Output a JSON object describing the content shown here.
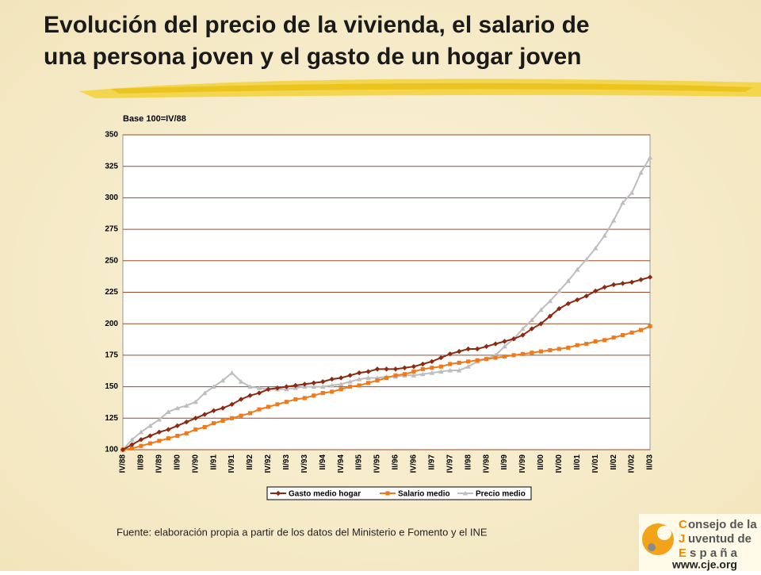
{
  "title_lines": [
    "Evolución del precio de la vivienda, el salario de",
    "una persona joven y el gasto de un hogar joven"
  ],
  "source": "Fuente: elaboración propia a partir de los datos del Ministerio e Fomento y el INE",
  "logo": {
    "lines": [
      "onsejo de la",
      "uventud de",
      "s p a ñ a"
    ],
    "initials": [
      "C",
      "J",
      "E"
    ],
    "url": "www.cje.org"
  },
  "chart_data": {
    "type": "line",
    "ylabel": "Base 100=IV/88",
    "categories": [
      "IV/88",
      null,
      "II/89",
      null,
      "IV/89",
      null,
      "II/90",
      null,
      "IV/90",
      null,
      "II/91",
      null,
      "IV/91",
      null,
      "II/92",
      null,
      "IV/92",
      null,
      "II/93",
      null,
      "IV/93",
      null,
      "II/94",
      null,
      "IV/94",
      null,
      "II/95",
      null,
      "IV/95",
      null,
      "II/96",
      null,
      "IV/96",
      null,
      "II/97",
      null,
      "IV/97",
      null,
      "II/98",
      null,
      "IV/98",
      null,
      "II/99",
      null,
      "IV/99",
      null,
      "II/00",
      null,
      "IV/00",
      null,
      "II/01",
      null,
      "IV/01",
      null,
      "II/02",
      null,
      "IV/02",
      null,
      "II/03"
    ],
    "ylim": [
      100,
      350
    ],
    "yticks": [
      100,
      125,
      150,
      175,
      200,
      225,
      250,
      275,
      300,
      325,
      350
    ],
    "grid": true,
    "legend": "bottom",
    "series": [
      {
        "name": "Gasto medio hogar",
        "color": "#8b2a10",
        "marker": "diamond",
        "values": [
          100,
          104,
          108,
          111,
          114,
          116,
          119,
          122,
          125,
          128,
          131,
          133,
          136,
          140,
          143,
          145,
          148,
          149,
          150,
          151,
          152,
          153,
          154,
          156,
          157,
          159,
          161,
          162,
          164,
          164,
          164,
          165,
          166,
          168,
          170,
          173,
          176,
          178,
          180,
          180,
          182,
          184,
          186,
          188,
          191,
          196,
          200,
          206,
          212,
          216,
          219,
          222,
          226,
          229,
          231,
          232,
          233,
          235,
          237
        ]
      },
      {
        "name": "Salario medio",
        "color": "#f07a1a",
        "marker": "square",
        "values": [
          100,
          101,
          103,
          105,
          107,
          109,
          111,
          113,
          116,
          118,
          121,
          123,
          125,
          127,
          129,
          132,
          134,
          136,
          138,
          140,
          141,
          143,
          145,
          146,
          148,
          150,
          151,
          153,
          155,
          157,
          159,
          160,
          162,
          164,
          165,
          166,
          168,
          169,
          170,
          171,
          172,
          173,
          174,
          175,
          176,
          177,
          178,
          179,
          180,
          181,
          183,
          184,
          186,
          187,
          189,
          191,
          193,
          195,
          198
        ]
      },
      {
        "name": "Precio medio",
        "color": "#bdbdbd",
        "marker": "triangle",
        "values": [
          100,
          108,
          114,
          119,
          124,
          130,
          133,
          135,
          138,
          145,
          150,
          155,
          161,
          154,
          150,
          149,
          148,
          148,
          148,
          149,
          150,
          150,
          150,
          151,
          152,
          154,
          156,
          157,
          157,
          158,
          158,
          159,
          159,
          160,
          161,
          162,
          163,
          163,
          166,
          170,
          172,
          175,
          182,
          188,
          196,
          203,
          211,
          218,
          226,
          234,
          243,
          251,
          260,
          270,
          282,
          296,
          304,
          320,
          332
        ]
      }
    ]
  }
}
